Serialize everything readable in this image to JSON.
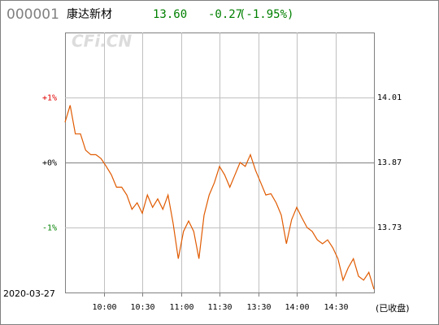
{
  "header": {
    "code": "000001",
    "name": "康达新材",
    "price": "13.60",
    "change": "-0.27",
    "change_pct": "(-1.95%)"
  },
  "watermark": "CFi.CN",
  "chart_data": {
    "type": "line",
    "date": "2020-03-27",
    "status": "(已收盘)",
    "x": [
      0,
      4,
      8,
      12,
      16,
      20,
      24,
      28,
      32,
      36,
      40,
      44,
      48,
      52,
      56,
      60,
      64,
      68,
      72,
      76,
      80,
      84,
      88,
      92,
      96,
      100,
      104,
      108,
      112,
      116,
      120,
      124,
      128,
      132,
      136,
      140,
      144,
      148,
      152,
      156,
      160,
      164,
      168,
      172,
      176,
      180,
      184,
      188,
      192,
      196,
      200,
      204,
      208,
      212,
      216,
      220,
      224,
      228,
      232,
      236,
      240
    ],
    "color": "#e05a00",
    "values": [
      0.62,
      0.88,
      0.44,
      0.44,
      0.19,
      0.12,
      0.12,
      0.06,
      -0.06,
      -0.19,
      -0.38,
      -0.38,
      -0.5,
      -0.72,
      -0.62,
      -0.78,
      -0.5,
      -0.69,
      -0.56,
      -0.72,
      -0.5,
      -0.94,
      -1.48,
      -1.06,
      -0.9,
      -1.06,
      -1.48,
      -0.81,
      -0.5,
      -0.31,
      -0.06,
      -0.19,
      -0.38,
      -0.19,
      0,
      -0.06,
      0.12,
      -0.12,
      -0.31,
      -0.5,
      -0.48,
      -0.62,
      -0.81,
      -1.25,
      -0.88,
      -0.69,
      -0.85,
      -1,
      -1.06,
      -1.19,
      -1.25,
      -1.19,
      -1.31,
      -1.48,
      -1.81,
      -1.62,
      -1.48,
      -1.75,
      -1.81,
      -1.69,
      -1.95
    ],
    "xlim": [
      0,
      240
    ],
    "xticks": [
      {
        "value": 30,
        "label": "10:00"
      },
      {
        "value": 60,
        "label": "10:30"
      },
      {
        "value": 90,
        "label": "11:00"
      },
      {
        "value": 120,
        "label": "11:30"
      },
      {
        "value": 150,
        "label": "13:30"
      },
      {
        "value": 180,
        "label": "14:00"
      },
      {
        "value": 210,
        "label": "14:30"
      }
    ],
    "ylim": [
      -2,
      2
    ],
    "yticks": [
      {
        "value": 1,
        "label": "+1%"
      },
      {
        "value": 0,
        "label": "+0%"
      },
      {
        "value": -1,
        "label": "-1%"
      }
    ],
    "y2lim": [
      13.59,
      14.15
    ],
    "y2ticks": [
      14.01,
      13.87,
      13.73
    ],
    "grid": true
  }
}
